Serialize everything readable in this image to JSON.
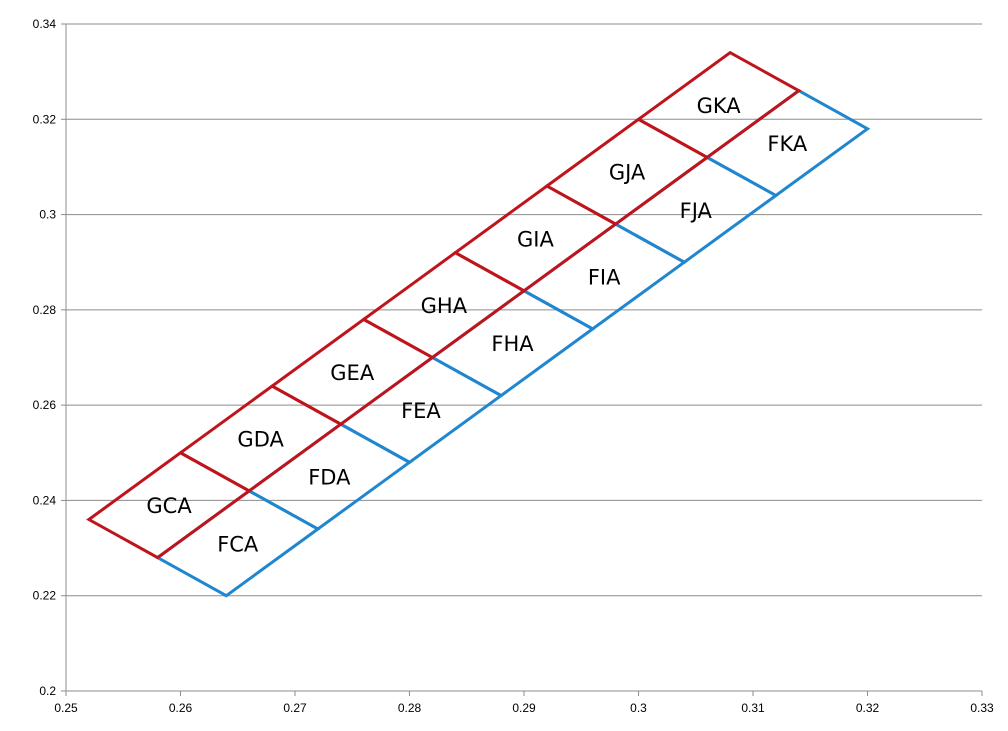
{
  "chart_data": {
    "type": "line",
    "title": "",
    "xlabel": "",
    "ylabel": "",
    "xlim": [
      0.25,
      0.33
    ],
    "ylim": [
      0.2,
      0.34
    ],
    "x_ticks": [
      "0.25",
      "0.26",
      "0.27",
      "0.28",
      "0.29",
      "0.3",
      "0.31",
      "0.32",
      "0.33"
    ],
    "y_ticks": [
      "0.2",
      "0.22",
      "0.24",
      "0.26",
      "0.28",
      "0.3",
      "0.32",
      "0.34"
    ],
    "grid": "horizontal",
    "legend": "none",
    "colors": {
      "G": "#c0141c",
      "F": "#1f86cf",
      "grid": "#8c8c8c",
      "axis": "#8c8c8c"
    },
    "series": [
      {
        "group": "G",
        "color": "#c0141c",
        "cells": [
          {
            "label": "GCA",
            "points": [
              [
                0.252,
                0.236
              ],
              [
                0.26,
                0.25
              ],
              [
                0.266,
                0.242
              ],
              [
                0.258,
                0.228
              ]
            ]
          },
          {
            "label": "GDA",
            "points": [
              [
                0.26,
                0.25
              ],
              [
                0.268,
                0.264
              ],
              [
                0.274,
                0.256
              ],
              [
                0.266,
                0.242
              ]
            ]
          },
          {
            "label": "GEA",
            "points": [
              [
                0.268,
                0.264
              ],
              [
                0.276,
                0.278
              ],
              [
                0.282,
                0.27
              ],
              [
                0.274,
                0.256
              ]
            ]
          },
          {
            "label": "GHA",
            "points": [
              [
                0.276,
                0.278
              ],
              [
                0.284,
                0.292
              ],
              [
                0.29,
                0.284
              ],
              [
                0.282,
                0.27
              ]
            ]
          },
          {
            "label": "GIA",
            "points": [
              [
                0.284,
                0.292
              ],
              [
                0.292,
                0.306
              ],
              [
                0.298,
                0.298
              ],
              [
                0.29,
                0.284
              ]
            ]
          },
          {
            "label": "GJA",
            "points": [
              [
                0.292,
                0.306
              ],
              [
                0.3,
                0.32
              ],
              [
                0.306,
                0.312
              ],
              [
                0.298,
                0.298
              ]
            ]
          },
          {
            "label": "GKA",
            "points": [
              [
                0.3,
                0.32
              ],
              [
                0.308,
                0.334
              ],
              [
                0.314,
                0.326
              ],
              [
                0.306,
                0.312
              ]
            ]
          }
        ]
      },
      {
        "group": "F",
        "color": "#1f86cf",
        "cells": [
          {
            "label": "FCA",
            "points": [
              [
                0.258,
                0.228
              ],
              [
                0.266,
                0.242
              ],
              [
                0.272,
                0.234
              ],
              [
                0.264,
                0.22
              ]
            ]
          },
          {
            "label": "FDA",
            "points": [
              [
                0.266,
                0.242
              ],
              [
                0.274,
                0.256
              ],
              [
                0.28,
                0.248
              ],
              [
                0.272,
                0.234
              ]
            ]
          },
          {
            "label": "FEA",
            "points": [
              [
                0.274,
                0.256
              ],
              [
                0.282,
                0.27
              ],
              [
                0.288,
                0.262
              ],
              [
                0.28,
                0.248
              ]
            ]
          },
          {
            "label": "FHA",
            "points": [
              [
                0.282,
                0.27
              ],
              [
                0.29,
                0.284
              ],
              [
                0.296,
                0.276
              ],
              [
                0.288,
                0.262
              ]
            ]
          },
          {
            "label": "FIA",
            "points": [
              [
                0.29,
                0.284
              ],
              [
                0.298,
                0.298
              ],
              [
                0.304,
                0.29
              ],
              [
                0.296,
                0.276
              ]
            ]
          },
          {
            "label": "FJA",
            "points": [
              [
                0.298,
                0.298
              ],
              [
                0.306,
                0.312
              ],
              [
                0.312,
                0.304
              ],
              [
                0.304,
                0.29
              ]
            ]
          },
          {
            "label": "FKA",
            "points": [
              [
                0.306,
                0.312
              ],
              [
                0.314,
                0.326
              ],
              [
                0.32,
                0.318
              ],
              [
                0.312,
                0.304
              ]
            ]
          }
        ]
      }
    ]
  }
}
